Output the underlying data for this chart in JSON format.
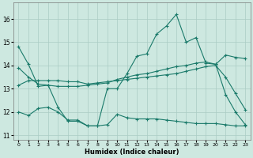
{
  "xlabel": "Humidex (Indice chaleur)",
  "xlim": [
    -0.5,
    23.5
  ],
  "ylim": [
    10.8,
    16.7
  ],
  "yticks": [
    11,
    12,
    13,
    14,
    15,
    16
  ],
  "xticks": [
    0,
    1,
    2,
    3,
    4,
    5,
    6,
    7,
    8,
    9,
    10,
    11,
    12,
    13,
    14,
    15,
    16,
    17,
    18,
    19,
    20,
    21,
    22,
    23
  ],
  "background_color": "#cde8e0",
  "grid_color": "#aaccc4",
  "line_color": "#1a7a6a",
  "series": [
    {
      "x": [
        0,
        1,
        2,
        3,
        4,
        5,
        6,
        7,
        8,
        9,
        10,
        11,
        12,
        13,
        14,
        15,
        16,
        17,
        18,
        19,
        20,
        21,
        22,
        23
      ],
      "y": [
        14.8,
        14.05,
        13.1,
        13.15,
        12.2,
        11.6,
        11.6,
        11.4,
        11.4,
        13.0,
        13.0,
        13.65,
        14.4,
        14.5,
        15.35,
        15.7,
        16.2,
        15.0,
        15.2,
        14.1,
        14.05,
        12.75,
        12.0,
        11.45
      ]
    },
    {
      "x": [
        0,
        1,
        2,
        3,
        4,
        5,
        6,
        7,
        8,
        9,
        10,
        11,
        12,
        13,
        14,
        15,
        16,
        17,
        18,
        19,
        20,
        21,
        22,
        23
      ],
      "y": [
        13.9,
        13.5,
        13.2,
        13.15,
        13.1,
        13.1,
        13.1,
        13.15,
        13.2,
        13.25,
        13.4,
        13.5,
        13.6,
        13.65,
        13.75,
        13.85,
        13.95,
        14.0,
        14.1,
        14.15,
        14.05,
        14.45,
        14.35,
        14.3
      ]
    },
    {
      "x": [
        0,
        1,
        2,
        3,
        4,
        5,
        6,
        7,
        8,
        9,
        10,
        11,
        12,
        13,
        14,
        15,
        16,
        17,
        18,
        19,
        20,
        21,
        22,
        23
      ],
      "y": [
        13.15,
        13.35,
        13.35,
        13.35,
        13.35,
        13.3,
        13.3,
        13.2,
        13.25,
        13.3,
        13.35,
        13.4,
        13.45,
        13.5,
        13.55,
        13.6,
        13.65,
        13.75,
        13.85,
        13.95,
        14.0,
        13.5,
        12.8,
        12.1
      ]
    },
    {
      "x": [
        0,
        1,
        2,
        3,
        4,
        5,
        6,
        7,
        8,
        9,
        10,
        11,
        12,
        13,
        14,
        15,
        16,
        17,
        18,
        19,
        20,
        21,
        22,
        23
      ],
      "y": [
        12.0,
        11.85,
        12.15,
        12.2,
        12.0,
        11.65,
        11.65,
        11.4,
        11.4,
        11.45,
        11.9,
        11.75,
        11.7,
        11.7,
        11.7,
        11.65,
        11.6,
        11.55,
        11.5,
        11.5,
        11.5,
        11.45,
        11.4,
        11.4
      ]
    }
  ]
}
